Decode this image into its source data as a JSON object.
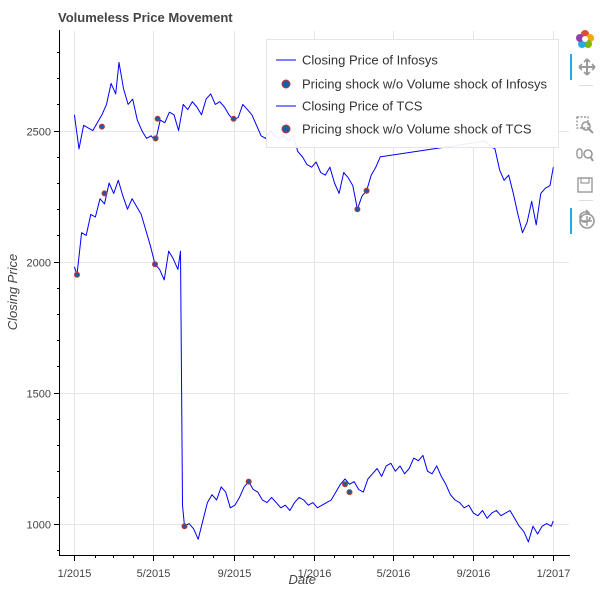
{
  "chart_data": {
    "type": "line",
    "title": "Volumeless Price Movement",
    "xlabel": "Date",
    "ylabel": "Closing Price",
    "x_tick_labels": [
      "1/2015",
      "5/2015",
      "9/2015",
      "1/2016",
      "5/2016",
      "9/2016",
      "1/2017"
    ],
    "y_ticks": [
      1000,
      1500,
      2000,
      2500
    ],
    "ylim": [
      880,
      2880
    ],
    "xlim": [
      "2014-12-10",
      "2017-01-25"
    ],
    "grid": true,
    "legend_position": "top-right",
    "series": [
      {
        "name": "Closing Price of Infosys",
        "kind": "line",
        "color": "#0000ff",
        "points": [
          [
            "2015-01-01",
            2560
          ],
          [
            "2015-01-08",
            2430
          ],
          [
            "2015-01-15",
            2520
          ],
          [
            "2015-01-22",
            2510
          ],
          [
            "2015-01-29",
            2500
          ],
          [
            "2015-02-05",
            2530
          ],
          [
            "2015-02-12",
            2560
          ],
          [
            "2015-02-19",
            2600
          ],
          [
            "2015-02-26",
            2680
          ],
          [
            "2015-03-05",
            2640
          ],
          [
            "2015-03-10",
            2760
          ],
          [
            "2015-03-17",
            2660
          ],
          [
            "2015-03-24",
            2600
          ],
          [
            "2015-03-31",
            2620
          ],
          [
            "2015-04-07",
            2540
          ],
          [
            "2015-04-14",
            2500
          ],
          [
            "2015-04-21",
            2470
          ],
          [
            "2015-04-28",
            2480
          ],
          [
            "2015-05-05",
            2460
          ],
          [
            "2015-05-12",
            2540
          ],
          [
            "2015-05-19",
            2530
          ],
          [
            "2015-05-26",
            2570
          ],
          [
            "2015-06-02",
            2560
          ],
          [
            "2015-06-09",
            2500
          ],
          [
            "2015-06-16",
            2600
          ],
          [
            "2015-06-23",
            2580
          ],
          [
            "2015-06-30",
            2610
          ],
          [
            "2015-07-07",
            2590
          ],
          [
            "2015-07-14",
            2560
          ],
          [
            "2015-07-21",
            2620
          ],
          [
            "2015-07-28",
            2640
          ],
          [
            "2015-08-04",
            2600
          ],
          [
            "2015-08-11",
            2610
          ],
          [
            "2015-08-18",
            2590
          ],
          [
            "2015-08-25",
            2560
          ],
          [
            "2015-09-01",
            2540
          ],
          [
            "2015-09-08",
            2550
          ],
          [
            "2015-09-15",
            2600
          ],
          [
            "2015-09-22",
            2580
          ],
          [
            "2015-09-29",
            2560
          ],
          [
            "2015-10-06",
            2520
          ],
          [
            "2015-10-13",
            2480
          ],
          [
            "2015-10-20",
            2470
          ],
          [
            "2015-10-27",
            2500
          ],
          [
            "2015-11-03",
            2480
          ],
          [
            "2015-11-10",
            2470
          ],
          [
            "2015-11-17",
            2480
          ],
          [
            "2015-11-24",
            2460
          ],
          [
            "2015-12-01",
            2480
          ],
          [
            "2015-12-08",
            2420
          ],
          [
            "2015-12-15",
            2400
          ],
          [
            "2015-12-22",
            2370
          ],
          [
            "2015-12-29",
            2360
          ],
          [
            "2016-01-05",
            2380
          ],
          [
            "2016-01-12",
            2340
          ],
          [
            "2016-01-19",
            2330
          ],
          [
            "2016-01-26",
            2360
          ],
          [
            "2016-02-02",
            2300
          ],
          [
            "2016-02-09",
            2260
          ],
          [
            "2016-02-16",
            2340
          ],
          [
            "2016-02-23",
            2320
          ],
          [
            "2016-03-01",
            2290
          ],
          [
            "2016-03-08",
            2200
          ],
          [
            "2016-03-15",
            2250
          ],
          [
            "2016-03-22",
            2270
          ],
          [
            "2016-03-29",
            2330
          ],
          [
            "2016-04-05",
            2360
          ],
          [
            "2016-04-12",
            2400
          ],
          [
            "2016-09-20",
            2460
          ],
          [
            "2016-09-27",
            2440
          ],
          [
            "2016-10-04",
            2430
          ],
          [
            "2016-10-11",
            2350
          ],
          [
            "2016-10-18",
            2310
          ],
          [
            "2016-10-25",
            2330
          ],
          [
            "2016-11-01",
            2260
          ],
          [
            "2016-11-08",
            2180
          ],
          [
            "2016-11-15",
            2110
          ],
          [
            "2016-11-22",
            2150
          ],
          [
            "2016-11-29",
            2230
          ],
          [
            "2016-12-06",
            2140
          ],
          [
            "2016-12-13",
            2260
          ],
          [
            "2016-12-20",
            2280
          ],
          [
            "2016-12-27",
            2290
          ],
          [
            "2017-01-01",
            2360
          ]
        ]
      },
      {
        "name": "Pricing shock w/o Volume shock of Infosys",
        "kind": "marker",
        "color": "#1f5aa8",
        "edge_color": "#c0392b",
        "points": [
          [
            "2015-02-12",
            2515
          ],
          [
            "2015-05-05",
            2470
          ],
          [
            "2015-05-08",
            2545
          ],
          [
            "2015-09-01",
            2545
          ],
          [
            "2016-03-08",
            2200
          ],
          [
            "2016-03-22",
            2270
          ]
        ]
      },
      {
        "name": "Closing Price of TCS",
        "kind": "line",
        "color": "#0000ff",
        "points": [
          [
            "2015-01-01",
            1980
          ],
          [
            "2015-01-05",
            1950
          ],
          [
            "2015-01-12",
            2110
          ],
          [
            "2015-01-19",
            2100
          ],
          [
            "2015-01-26",
            2180
          ],
          [
            "2015-02-02",
            2170
          ],
          [
            "2015-02-09",
            2240
          ],
          [
            "2015-02-16",
            2220
          ],
          [
            "2015-02-23",
            2300
          ],
          [
            "2015-03-02",
            2260
          ],
          [
            "2015-03-09",
            2310
          ],
          [
            "2015-03-16",
            2250
          ],
          [
            "2015-03-23",
            2200
          ],
          [
            "2015-03-30",
            2240
          ],
          [
            "2015-04-06",
            2210
          ],
          [
            "2015-04-13",
            2180
          ],
          [
            "2015-04-20",
            2120
          ],
          [
            "2015-04-27",
            2060
          ],
          [
            "2015-05-04",
            1990
          ],
          [
            "2015-05-11",
            1970
          ],
          [
            "2015-05-18",
            1930
          ],
          [
            "2015-05-25",
            2040
          ],
          [
            "2015-06-01",
            2010
          ],
          [
            "2015-06-08",
            1970
          ],
          [
            "2015-06-12",
            2040
          ],
          [
            "2015-06-15",
            1070
          ],
          [
            "2015-06-18",
            990
          ],
          [
            "2015-06-25",
            1000
          ],
          [
            "2015-07-02",
            980
          ],
          [
            "2015-07-09",
            940
          ],
          [
            "2015-07-16",
            1010
          ],
          [
            "2015-07-23",
            1080
          ],
          [
            "2015-07-30",
            1110
          ],
          [
            "2015-08-06",
            1090
          ],
          [
            "2015-08-13",
            1140
          ],
          [
            "2015-08-20",
            1120
          ],
          [
            "2015-08-27",
            1060
          ],
          [
            "2015-09-03",
            1070
          ],
          [
            "2015-09-10",
            1100
          ],
          [
            "2015-09-17",
            1140
          ],
          [
            "2015-09-24",
            1160
          ],
          [
            "2015-10-01",
            1130
          ],
          [
            "2015-10-08",
            1120
          ],
          [
            "2015-10-15",
            1090
          ],
          [
            "2015-10-22",
            1080
          ],
          [
            "2015-10-29",
            1100
          ],
          [
            "2015-11-05",
            1080
          ],
          [
            "2015-11-12",
            1060
          ],
          [
            "2015-11-19",
            1070
          ],
          [
            "2015-11-26",
            1050
          ],
          [
            "2015-12-03",
            1080
          ],
          [
            "2015-12-10",
            1100
          ],
          [
            "2015-12-17",
            1090
          ],
          [
            "2015-12-24",
            1070
          ],
          [
            "2015-12-31",
            1080
          ],
          [
            "2016-01-07",
            1060
          ],
          [
            "2016-01-14",
            1070
          ],
          [
            "2016-01-21",
            1080
          ],
          [
            "2016-01-28",
            1090
          ],
          [
            "2016-02-04",
            1120
          ],
          [
            "2016-02-11",
            1150
          ],
          [
            "2016-02-18",
            1170
          ],
          [
            "2016-02-25",
            1150
          ],
          [
            "2016-03-03",
            1160
          ],
          [
            "2016-03-10",
            1130
          ],
          [
            "2016-03-17",
            1120
          ],
          [
            "2016-03-24",
            1170
          ],
          [
            "2016-03-31",
            1190
          ],
          [
            "2016-04-07",
            1210
          ],
          [
            "2016-04-14",
            1180
          ],
          [
            "2016-04-21",
            1220
          ],
          [
            "2016-04-28",
            1230
          ],
          [
            "2016-05-05",
            1200
          ],
          [
            "2016-05-12",
            1220
          ],
          [
            "2016-05-19",
            1190
          ],
          [
            "2016-05-26",
            1210
          ],
          [
            "2016-06-02",
            1250
          ],
          [
            "2016-06-09",
            1240
          ],
          [
            "2016-06-16",
            1260
          ],
          [
            "2016-06-23",
            1200
          ],
          [
            "2016-06-30",
            1190
          ],
          [
            "2016-07-07",
            1220
          ],
          [
            "2016-07-14",
            1180
          ],
          [
            "2016-07-21",
            1150
          ],
          [
            "2016-07-28",
            1110
          ],
          [
            "2016-08-04",
            1090
          ],
          [
            "2016-08-11",
            1080
          ],
          [
            "2016-08-18",
            1060
          ],
          [
            "2016-08-25",
            1070
          ],
          [
            "2016-09-01",
            1040
          ],
          [
            "2016-09-08",
            1030
          ],
          [
            "2016-09-15",
            1050
          ],
          [
            "2016-09-22",
            1020
          ],
          [
            "2016-09-29",
            1040
          ],
          [
            "2016-10-06",
            1050
          ],
          [
            "2016-10-13",
            1030
          ],
          [
            "2016-10-20",
            1040
          ],
          [
            "2016-10-27",
            1050
          ],
          [
            "2016-11-03",
            1020
          ],
          [
            "2016-11-10",
            990
          ],
          [
            "2016-11-17",
            970
          ],
          [
            "2016-11-24",
            930
          ],
          [
            "2016-12-01",
            990
          ],
          [
            "2016-12-08",
            960
          ],
          [
            "2016-12-15",
            990
          ],
          [
            "2016-12-22",
            1000
          ],
          [
            "2016-12-29",
            990
          ],
          [
            "2017-01-01",
            1010
          ]
        ]
      },
      {
        "name": "Pricing shock w/o Volume shock of TCS",
        "kind": "marker",
        "color": "#1f5aa8",
        "edge_color": "#c0392b",
        "points": [
          [
            "2015-01-05",
            1950
          ],
          [
            "2015-02-16",
            2260
          ],
          [
            "2015-05-04",
            1990
          ],
          [
            "2015-06-18",
            990
          ],
          [
            "2015-09-24",
            1160
          ],
          [
            "2016-02-18",
            1150
          ],
          [
            "2016-02-25",
            1120
          ]
        ]
      }
    ]
  },
  "toolbar": {
    "items": [
      {
        "name": "bokeh-logo",
        "icon": "bokeh-logo-icon"
      },
      {
        "name": "pan-tool",
        "icon": "pan-icon"
      },
      {
        "name": "box-zoom-tool",
        "icon": "box-zoom-icon"
      },
      {
        "name": "wheel-zoom-tool",
        "icon": "wheel-zoom-icon"
      },
      {
        "name": "save-tool",
        "icon": "save-icon"
      },
      {
        "name": "reset-tool",
        "icon": "reset-icon"
      },
      {
        "name": "hover-tool",
        "icon": "hover-icon"
      }
    ]
  }
}
